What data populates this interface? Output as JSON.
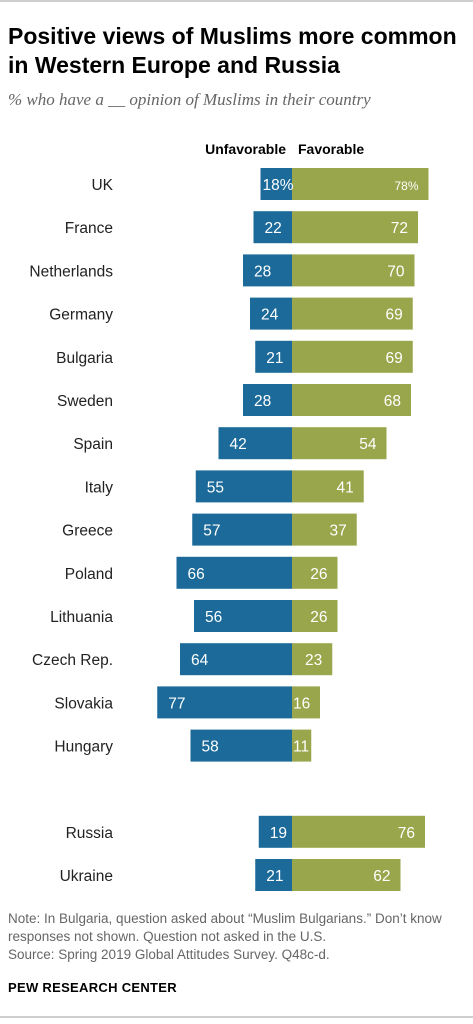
{
  "title": "Positive views of Muslims more common in Western Europe and Russia",
  "subtitle": "% who have a __ opinion of Muslims in their country",
  "note": "Note: In Bulgaria, question asked about “Muslim Bulgarians.” Don’t know responses not shown. Question not asked in the U.S.",
  "source": "Source: Spring 2019 Global Attitudes Survey. Q48c-d.",
  "organization": "PEW RESEARCH CENTER",
  "colors": {
    "unfavorable": "#1b6a99",
    "favorable": "#9aa64b"
  },
  "chart_data": {
    "type": "bar",
    "orientation": "horizontal-diverging",
    "categories": [
      "UK",
      "France",
      "Netherlands",
      "Germany",
      "Bulgaria",
      "Sweden",
      "Spain",
      "Italy",
      "Greece",
      "Poland",
      "Lithuania",
      "Czech Rep.",
      "Slovakia",
      "Hungary",
      "Russia",
      "Ukraine"
    ],
    "groups": [
      [
        "UK",
        "France",
        "Netherlands",
        "Germany",
        "Bulgaria",
        "Sweden",
        "Spain",
        "Italy",
        "Greece",
        "Poland",
        "Lithuania",
        "Czech Rep.",
        "Slovakia",
        "Hungary"
      ],
      [
        "Russia",
        "Ukraine"
      ]
    ],
    "series": [
      {
        "name": "Unfavorable",
        "values": [
          18,
          22,
          28,
          24,
          21,
          28,
          42,
          55,
          57,
          66,
          56,
          64,
          77,
          58,
          19,
          21
        ],
        "labels": [
          "18%",
          "22",
          "28",
          "24",
          "21",
          "28",
          "42",
          "55",
          "57",
          "66",
          "56",
          "64",
          "77",
          "58",
          "19",
          "21"
        ]
      },
      {
        "name": "Favorable",
        "values": [
          78,
          72,
          70,
          69,
          69,
          68,
          54,
          41,
          37,
          26,
          26,
          23,
          16,
          11,
          76,
          62
        ],
        "labels": [
          "78%",
          "72",
          "70",
          "69",
          "69",
          "68",
          "54",
          "41",
          "37",
          "26",
          "26",
          "23",
          "16",
          "11",
          "76",
          "62"
        ]
      }
    ],
    "xlim": [
      -77,
      78
    ],
    "legend": "top, above bars",
    "grid": false
  }
}
